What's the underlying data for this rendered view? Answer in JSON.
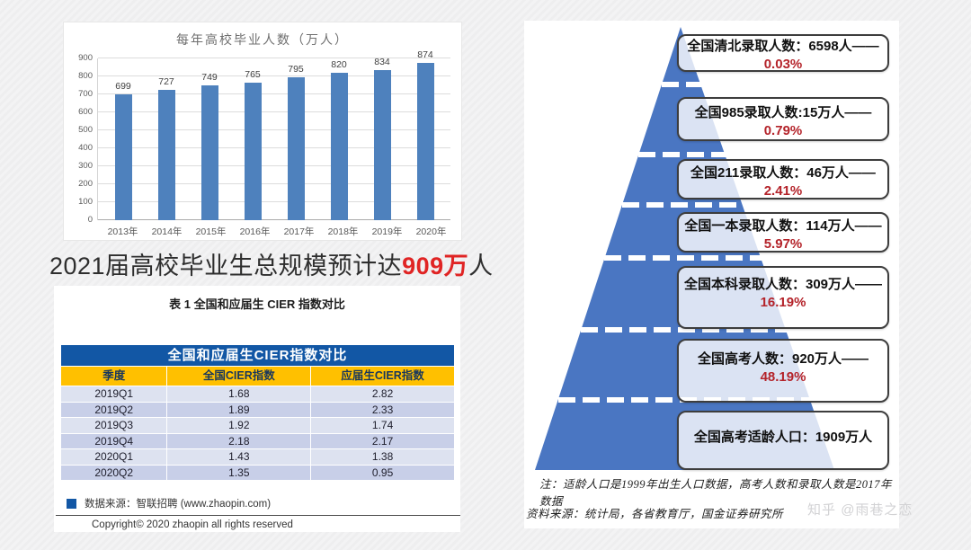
{
  "chart_data": [
    {
      "type": "bar",
      "title": "每年高校毕业人数（万人）",
      "categories": [
        "2013年",
        "2014年",
        "2015年",
        "2016年",
        "2017年",
        "2018年",
        "2019年",
        "2020年"
      ],
      "values": [
        699,
        727,
        749,
        765,
        795,
        820,
        834,
        874
      ],
      "xlabel": "",
      "ylabel": "",
      "ylim": [
        0,
        900
      ],
      "ytick_step": 100,
      "grid": true,
      "value_labels": true,
      "legend": "none",
      "bar_color": "#4e81bd"
    },
    {
      "type": "table",
      "caption": "表 1  全国和应届生 CIER 指数对比",
      "title": "全国和应届生CIER指数对比",
      "columns": [
        "季度",
        "全国CIER指数",
        "应届生CIER指数"
      ],
      "rows": [
        [
          "2019Q1",
          "1.68",
          "2.82"
        ],
        [
          "2019Q2",
          "1.89",
          "2.33"
        ],
        [
          "2019Q3",
          "1.92",
          "1.74"
        ],
        [
          "2019Q4",
          "2.18",
          "2.17"
        ],
        [
          "2020Q1",
          "1.43",
          "1.38"
        ],
        [
          "2020Q2",
          "1.35",
          "0.95"
        ]
      ],
      "source": "数据来源：智联招聘 (www.zhaopin.com)",
      "copyright": "Copyright© 2020 zhaopin all rights reserved"
    }
  ],
  "headline": {
    "prefix": "2021届高校毕业生总规模预计达",
    "highlight": "909万",
    "suffix": "人"
  },
  "pyramid": {
    "tiers": [
      {
        "label": "全国清北录取人数：6598人——",
        "pct": "0.03%"
      },
      {
        "label": "全国985录取人数:15万人——",
        "pct": "0.79%"
      },
      {
        "label": "全国211录取人数：46万人——",
        "pct": "2.41%"
      },
      {
        "label": "全国一本录取人数：114万人——",
        "pct": "5.97%"
      },
      {
        "label": "全国本科录取人数：309万人——",
        "pct": "16.19%"
      },
      {
        "label": "全国高考人数：920万人——",
        "pct": "48.19%"
      },
      {
        "label": "全国高考适龄人口：1909万人",
        "pct": ""
      }
    ],
    "note": "注：适龄人口是1999年出生人口数据，高考人数和录取人数是2017年数据",
    "source": "资料来源：统计局，各省教育厅，国金证券研究所"
  },
  "watermark": {
    "logo": "知乎",
    "handle": "@雨巷之恋"
  },
  "colors": {
    "bar_blue": "#4e81bd",
    "table_title_blue": "#1257a5",
    "table_header_yellow": "#ffc000",
    "row_light": "#dde2f0",
    "row_dark": "#c8cfe8",
    "pyramid_blue": "#4a76c2",
    "percent_red": "#b4232a",
    "headline_red": "#e02424"
  }
}
